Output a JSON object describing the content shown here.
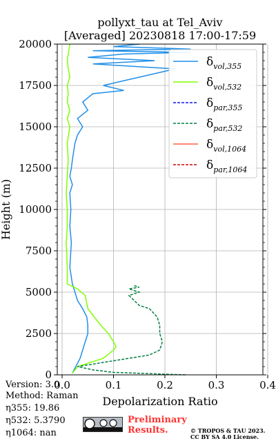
{
  "chart_data": {
    "type": "line",
    "title": "pollyxt_tau at Tel_Aviv",
    "subtitle": "[Averaged] 20230818 17:00-17:59",
    "xlabel": "Depolarization Ratio",
    "ylabel": "Height (m)",
    "xlim": [
      0,
      0.4
    ],
    "ylim": [
      0,
      20000
    ],
    "xticks": [
      "0.0",
      "0.1",
      "0.2",
      "0.3",
      "0.4"
    ],
    "yticks": [
      "0",
      "2500",
      "5000",
      "7500",
      "10000",
      "12500",
      "15000",
      "17500",
      "20000"
    ],
    "grid": true,
    "legend_position": "top-right",
    "series": [
      {
        "name": "δvol,355",
        "label_main": "δ",
        "label_sub": "vol,355",
        "color": "#1f8fe8",
        "style": "solid",
        "x": [
          0.02,
          0.025,
          0.035,
          0.045,
          0.05,
          0.05,
          0.048,
          0.04,
          0.03,
          0.025,
          0.02,
          0.015,
          0.018,
          0.015,
          0.017,
          0.015,
          0.02,
          0.015,
          0.018,
          0.02,
          0.025,
          0.03,
          0.04,
          0.03,
          0.05,
          0.04,
          0.06,
          0.12,
          0.08,
          0.15,
          0.22,
          0.06,
          0.18,
          0.05,
          0.12,
          0.25,
          0.06,
          0.25,
          0.1,
          0.15
        ],
        "y": [
          100,
          400,
          1000,
          2000,
          2500,
          3000,
          3500,
          4000,
          4500,
          5000,
          5500,
          6500,
          8000,
          9000,
          10000,
          11000,
          11500,
          12000,
          12500,
          13000,
          14000,
          14500,
          15000,
          15500,
          16000,
          16500,
          17000,
          17200,
          17500,
          18000,
          18500,
          18800,
          19000,
          19200,
          19400,
          19500,
          19600,
          19700,
          19850,
          20000
        ]
      },
      {
        "name": "δvol,532",
        "label_main": "δ",
        "label_sub": "vol,532",
        "color": "#7fff00",
        "style": "solid",
        "x": [
          0.02,
          0.03,
          0.08,
          0.1,
          0.105,
          0.1,
          0.09,
          0.075,
          0.05,
          0.045,
          0.03,
          0.01,
          0.01,
          0.008,
          0.01,
          0.01,
          0.008,
          0.01,
          0.012,
          0.01,
          0.015,
          0.01,
          0.015,
          0.01,
          0.012,
          0.01,
          0.015,
          0.012,
          0.01,
          0.015
        ],
        "y": [
          100,
          500,
          1000,
          1500,
          1700,
          2000,
          2500,
          3000,
          4000,
          4800,
          5200,
          5500,
          6500,
          8000,
          9000,
          10000,
          11000,
          12000,
          13000,
          14000,
          15000,
          15500,
          16000,
          16500,
          17000,
          17500,
          18000,
          18500,
          19000,
          20000
        ]
      },
      {
        "name": "δpar,355",
        "label_main": "δ",
        "label_sub": "par,355",
        "color": "#1010ee",
        "style": "dashed",
        "x": [],
        "y": []
      },
      {
        "name": "δpar,532",
        "label_main": "δ",
        "label_sub": "par,532",
        "color": "#007f3f",
        "style": "dashed",
        "x": [
          0.24,
          0.1,
          0.06,
          0.03,
          0.17,
          0.19,
          0.195,
          0.19,
          0.19,
          0.185,
          0.17,
          0.15,
          0.14,
          0.13,
          0.15,
          0.13,
          0.15,
          0.14
        ],
        "y": [
          0,
          150,
          300,
          500,
          1200,
          1500,
          2000,
          2500,
          3000,
          3500,
          4000,
          4200,
          4500,
          4800,
          5000,
          5200,
          5300,
          5400
        ]
      },
      {
        "name": "δvol,1064",
        "label_main": "δ",
        "label_sub": "vol,1064",
        "color": "#ff6040",
        "style": "solid",
        "x": [],
        "y": []
      },
      {
        "name": "δpar,1064",
        "label_main": "δ",
        "label_sub": "par,1064",
        "color": "#cc0000",
        "style": "dashed",
        "x": [],
        "y": []
      }
    ]
  },
  "info": {
    "version": "Version: 3.0",
    "method": "Method: Raman",
    "eta355": "η355:  19.86",
    "eta532": "η532: 5.3790",
    "eta1064": "η1064:    nan"
  },
  "footer": {
    "preliminary_line1": "Preliminary",
    "preliminary_line2": "Results.",
    "copyright": "© TROPOS & TAU 2023.",
    "license": "CC BY SA 4.0 License."
  }
}
